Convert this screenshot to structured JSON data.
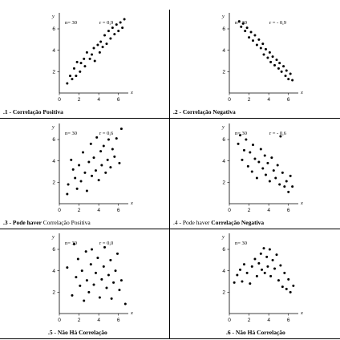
{
  "chart_data": [
    {
      "type": "scatter",
      "caption": ".1 - Correlação Positiva",
      "n_label": "n= 30",
      "r_label": "r = 0,9",
      "xlabel": "x",
      "ylabel": "y",
      "xlim": [
        0,
        7
      ],
      "ylim": [
        0,
        7.5
      ],
      "xticks": [
        0,
        2,
        4,
        6
      ],
      "yticks": [
        2,
        4,
        6
      ],
      "points": [
        [
          0.8,
          0.9
        ],
        [
          1.1,
          1.6
        ],
        [
          1.3,
          1.3
        ],
        [
          1.5,
          2.3
        ],
        [
          1.7,
          1.6
        ],
        [
          1.8,
          2.9
        ],
        [
          2.1,
          2.0
        ],
        [
          2.2,
          2.8
        ],
        [
          2.5,
          3.2
        ],
        [
          2.6,
          2.5
        ],
        [
          2.8,
          3.8
        ],
        [
          3.1,
          3.2
        ],
        [
          3.3,
          3.6
        ],
        [
          3.5,
          4.2
        ],
        [
          3.6,
          3.0
        ],
        [
          3.9,
          4.5
        ],
        [
          4.1,
          3.8
        ],
        [
          4.2,
          4.8
        ],
        [
          4.4,
          4.3
        ],
        [
          4.6,
          5.4
        ],
        [
          4.8,
          4.6
        ],
        [
          5.0,
          5.8
        ],
        [
          5.2,
          5.1
        ],
        [
          5.4,
          6.1
        ],
        [
          5.6,
          5.5
        ],
        [
          5.8,
          6.4
        ],
        [
          6.0,
          5.8
        ],
        [
          6.2,
          6.6
        ],
        [
          6.4,
          6.1
        ],
        [
          6.6,
          6.9
        ]
      ]
    },
    {
      "type": "scatter",
      "caption": ".2 - Correlação Negativa",
      "n_label": "n= 30",
      "r_label": "r = - 0,9",
      "xlabel": "x",
      "ylabel": "y",
      "xlim": [
        0,
        7
      ],
      "ylim": [
        0,
        7.5
      ],
      "xticks": [
        0,
        2,
        4,
        6
      ],
      "yticks": [
        2,
        4,
        6
      ],
      "points": [
        [
          1.0,
          6.7
        ],
        [
          1.2,
          6.2
        ],
        [
          1.4,
          6.5
        ],
        [
          1.6,
          5.8
        ],
        [
          1.8,
          6.1
        ],
        [
          2.0,
          5.2
        ],
        [
          2.2,
          5.7
        ],
        [
          2.4,
          4.9
        ],
        [
          2.6,
          5.4
        ],
        [
          2.8,
          4.5
        ],
        [
          3.0,
          5.0
        ],
        [
          3.2,
          4.2
        ],
        [
          3.4,
          4.6
        ],
        [
          3.5,
          3.6
        ],
        [
          3.7,
          4.1
        ],
        [
          3.9,
          3.3
        ],
        [
          4.1,
          3.8
        ],
        [
          4.2,
          2.9
        ],
        [
          4.4,
          3.4
        ],
        [
          4.6,
          2.6
        ],
        [
          4.8,
          3.1
        ],
        [
          5.0,
          2.3
        ],
        [
          5.1,
          2.8
        ],
        [
          5.3,
          2.0
        ],
        [
          5.5,
          2.5
        ],
        [
          5.7,
          1.6
        ],
        [
          5.8,
          2.1
        ],
        [
          6.0,
          1.3
        ],
        [
          6.2,
          1.8
        ],
        [
          6.4,
          1.2
        ]
      ]
    },
    {
      "type": "scatter",
      "caption_bold": ".3 - Pode haver",
      "caption_light": " Correlação Positiva",
      "n_label": "n= 30",
      "r_label": "r = 0,6",
      "xlabel": "x",
      "ylabel": "y",
      "xlim": [
        0,
        7
      ],
      "ylim": [
        0,
        7.5
      ],
      "xticks": [
        0,
        2,
        4,
        6
      ],
      "yticks": [
        2,
        4,
        6
      ],
      "points": [
        [
          0.8,
          0.9
        ],
        [
          0.9,
          1.8
        ],
        [
          1.2,
          4.1
        ],
        [
          1.4,
          3.2
        ],
        [
          1.6,
          2.4
        ],
        [
          1.8,
          1.4
        ],
        [
          2.0,
          3.6
        ],
        [
          2.2,
          2.1
        ],
        [
          2.4,
          4.8
        ],
        [
          2.6,
          2.9
        ],
        [
          2.8,
          1.2
        ],
        [
          3.0,
          3.9
        ],
        [
          3.2,
          5.6
        ],
        [
          3.3,
          2.6
        ],
        [
          3.5,
          4.3
        ],
        [
          3.7,
          3.1
        ],
        [
          3.8,
          6.2
        ],
        [
          4.0,
          2.2
        ],
        [
          4.2,
          4.9
        ],
        [
          4.3,
          3.6
        ],
        [
          4.5,
          5.4
        ],
        [
          4.7,
          2.9
        ],
        [
          4.9,
          4.1
        ],
        [
          5.0,
          6.0
        ],
        [
          5.2,
          3.4
        ],
        [
          5.4,
          5.1
        ],
        [
          5.6,
          4.4
        ],
        [
          5.8,
          6.1
        ],
        [
          6.1,
          3.8
        ],
        [
          6.3,
          7.0
        ]
      ]
    },
    {
      "type": "scatter",
      "caption_light": ".4 - Pode haver ",
      "caption_bold": "Correlação Negativa",
      "n_label": "n= 30",
      "r_label": "r = - 0,6",
      "xlabel": "x",
      "ylabel": "y",
      "xlim": [
        0,
        7
      ],
      "ylim": [
        0,
        7.5
      ],
      "xticks": [
        0,
        2,
        4,
        6
      ],
      "yticks": [
        2,
        4,
        6
      ],
      "points": [
        [
          0.9,
          5.6
        ],
        [
          1.1,
          6.4
        ],
        [
          1.3,
          4.1
        ],
        [
          1.5,
          5.0
        ],
        [
          1.7,
          6.0
        ],
        [
          1.9,
          3.5
        ],
        [
          2.1,
          4.8
        ],
        [
          2.3,
          3.0
        ],
        [
          2.4,
          5.5
        ],
        [
          2.6,
          4.2
        ],
        [
          2.8,
          2.4
        ],
        [
          3.0,
          3.9
        ],
        [
          3.2,
          5.1
        ],
        [
          3.4,
          3.3
        ],
        [
          3.6,
          4.5
        ],
        [
          3.7,
          2.7
        ],
        [
          3.9,
          3.8
        ],
        [
          4.1,
          2.1
        ],
        [
          4.3,
          4.3
        ],
        [
          4.5,
          3.1
        ],
        [
          4.7,
          2.4
        ],
        [
          4.9,
          3.6
        ],
        [
          5.1,
          1.8
        ],
        [
          5.2,
          6.3
        ],
        [
          5.4,
          2.9
        ],
        [
          5.6,
          1.6
        ],
        [
          5.8,
          2.1
        ],
        [
          6.0,
          1.1
        ],
        [
          6.2,
          2.6
        ],
        [
          6.4,
          1.6
        ]
      ]
    },
    {
      "type": "scatter",
      "caption": ".5 - Não Há Correlação",
      "n_label": "n= 30",
      "r_label": "r = 0,0",
      "xlabel": "x",
      "ylabel": "y",
      "xlim": [
        0,
        7
      ],
      "ylim": [
        0,
        7.5
      ],
      "xticks": [
        0,
        2,
        4,
        6
      ],
      "yticks": [
        2,
        4,
        6
      ],
      "points": [
        [
          0.8,
          4.3
        ],
        [
          1.3,
          1.7
        ],
        [
          1.5,
          6.5
        ],
        [
          1.7,
          3.4
        ],
        [
          1.9,
          5.1
        ],
        [
          2.1,
          2.6
        ],
        [
          2.3,
          4.0
        ],
        [
          2.5,
          1.2
        ],
        [
          2.7,
          5.8
        ],
        [
          2.8,
          3.1
        ],
        [
          3.0,
          2.0
        ],
        [
          3.2,
          4.6
        ],
        [
          3.3,
          6.0
        ],
        [
          3.5,
          2.7
        ],
        [
          3.7,
          3.8
        ],
        [
          3.9,
          5.2
        ],
        [
          4.1,
          1.5
        ],
        [
          4.3,
          3.2
        ],
        [
          4.5,
          4.4
        ],
        [
          4.6,
          6.2
        ],
        [
          4.8,
          2.4
        ],
        [
          5.0,
          3.6
        ],
        [
          5.2,
          5.0
        ],
        [
          5.3,
          1.4
        ],
        [
          5.5,
          2.9
        ],
        [
          5.7,
          4.0
        ],
        [
          5.9,
          5.6
        ],
        [
          6.1,
          2.2
        ],
        [
          6.3,
          3.1
        ],
        [
          6.7,
          0.9
        ]
      ]
    },
    {
      "type": "scatter",
      "caption": ".6 - Não Há Correlação",
      "n_label": "n= 30",
      "xlabel": "x",
      "ylabel": "y",
      "xlim": [
        0,
        7
      ],
      "ylim": [
        0,
        7.5
      ],
      "xticks": [
        0,
        2,
        4,
        6
      ],
      "yticks": [
        2,
        4,
        6
      ],
      "points": [
        [
          0.5,
          2.9
        ],
        [
          0.8,
          3.6
        ],
        [
          1.1,
          4.1
        ],
        [
          1.3,
          3.0
        ],
        [
          1.5,
          4.6
        ],
        [
          1.8,
          3.8
        ],
        [
          2.1,
          2.8
        ],
        [
          2.3,
          4.4
        ],
        [
          2.6,
          5.1
        ],
        [
          2.8,
          3.5
        ],
        [
          3.0,
          4.7
        ],
        [
          3.2,
          5.6
        ],
        [
          3.3,
          4.1
        ],
        [
          3.5,
          6.1
        ],
        [
          3.6,
          3.8
        ],
        [
          3.8,
          5.3
        ],
        [
          3.9,
          4.4
        ],
        [
          4.1,
          6.0
        ],
        [
          4.2,
          3.5
        ],
        [
          4.4,
          5.0
        ],
        [
          4.6,
          4.2
        ],
        [
          4.8,
          5.5
        ],
        [
          5.0,
          3.1
        ],
        [
          5.2,
          4.5
        ],
        [
          5.4,
          2.5
        ],
        [
          5.6,
          3.8
        ],
        [
          5.8,
          2.3
        ],
        [
          6.0,
          3.2
        ],
        [
          6.2,
          2.0
        ],
        [
          6.5,
          2.6
        ]
      ]
    }
  ]
}
